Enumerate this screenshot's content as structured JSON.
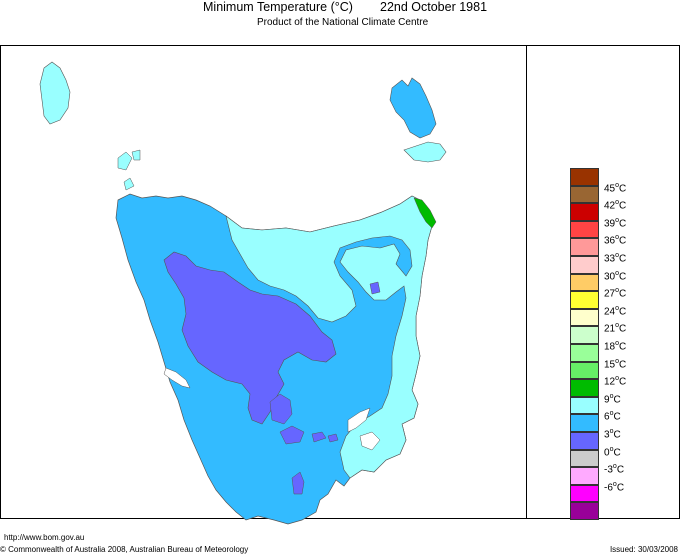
{
  "header": {
    "title": "Minimum Temperature (°C)",
    "date": "22nd October 1981",
    "subtitle": "Product of the National Climate Centre"
  },
  "legend": {
    "items": [
      {
        "label": "45",
        "color": "#993300"
      },
      {
        "label": "42",
        "color": "#996633"
      },
      {
        "label": "39",
        "color": "#cc0000"
      },
      {
        "label": "36",
        "color": "#ff4444"
      },
      {
        "label": "33",
        "color": "#ff9999"
      },
      {
        "label": "30",
        "color": "#ffcccc"
      },
      {
        "label": "27",
        "color": "#ffcc66"
      },
      {
        "label": "24",
        "color": "#ffff33"
      },
      {
        "label": "21",
        "color": "#ffffcc"
      },
      {
        "label": "18",
        "color": "#ccffcc"
      },
      {
        "label": "15",
        "color": "#99ff99"
      },
      {
        "label": "12",
        "color": "#66ee66"
      },
      {
        "label": "9",
        "color": "#00bb00"
      },
      {
        "label": "6",
        "color": "#99ffff"
      },
      {
        "label": "3",
        "color": "#33bbff"
      },
      {
        "label": "0",
        "color": "#6666ff"
      },
      {
        "label": "-3",
        "color": "#cccccc"
      },
      {
        "label": "-6",
        "color": "#ffaaff"
      },
      {
        "label": "",
        "color": "#ff00ff"
      },
      {
        "label": "",
        "color": "#990099"
      }
    ],
    "unit": "C"
  },
  "map": {
    "colors": {
      "zone_9_12": "#99ffff",
      "zone_6_9": "#33bbff",
      "zone_3_6": "#6666ff",
      "zone_12_15": "#00bb00"
    }
  },
  "footer": {
    "url": "http://www.bom.gov.au",
    "copyright": "© Commonwealth of Australia 2008, Australian Bureau of Meteorology",
    "issued": "Issued: 30/03/2008"
  }
}
